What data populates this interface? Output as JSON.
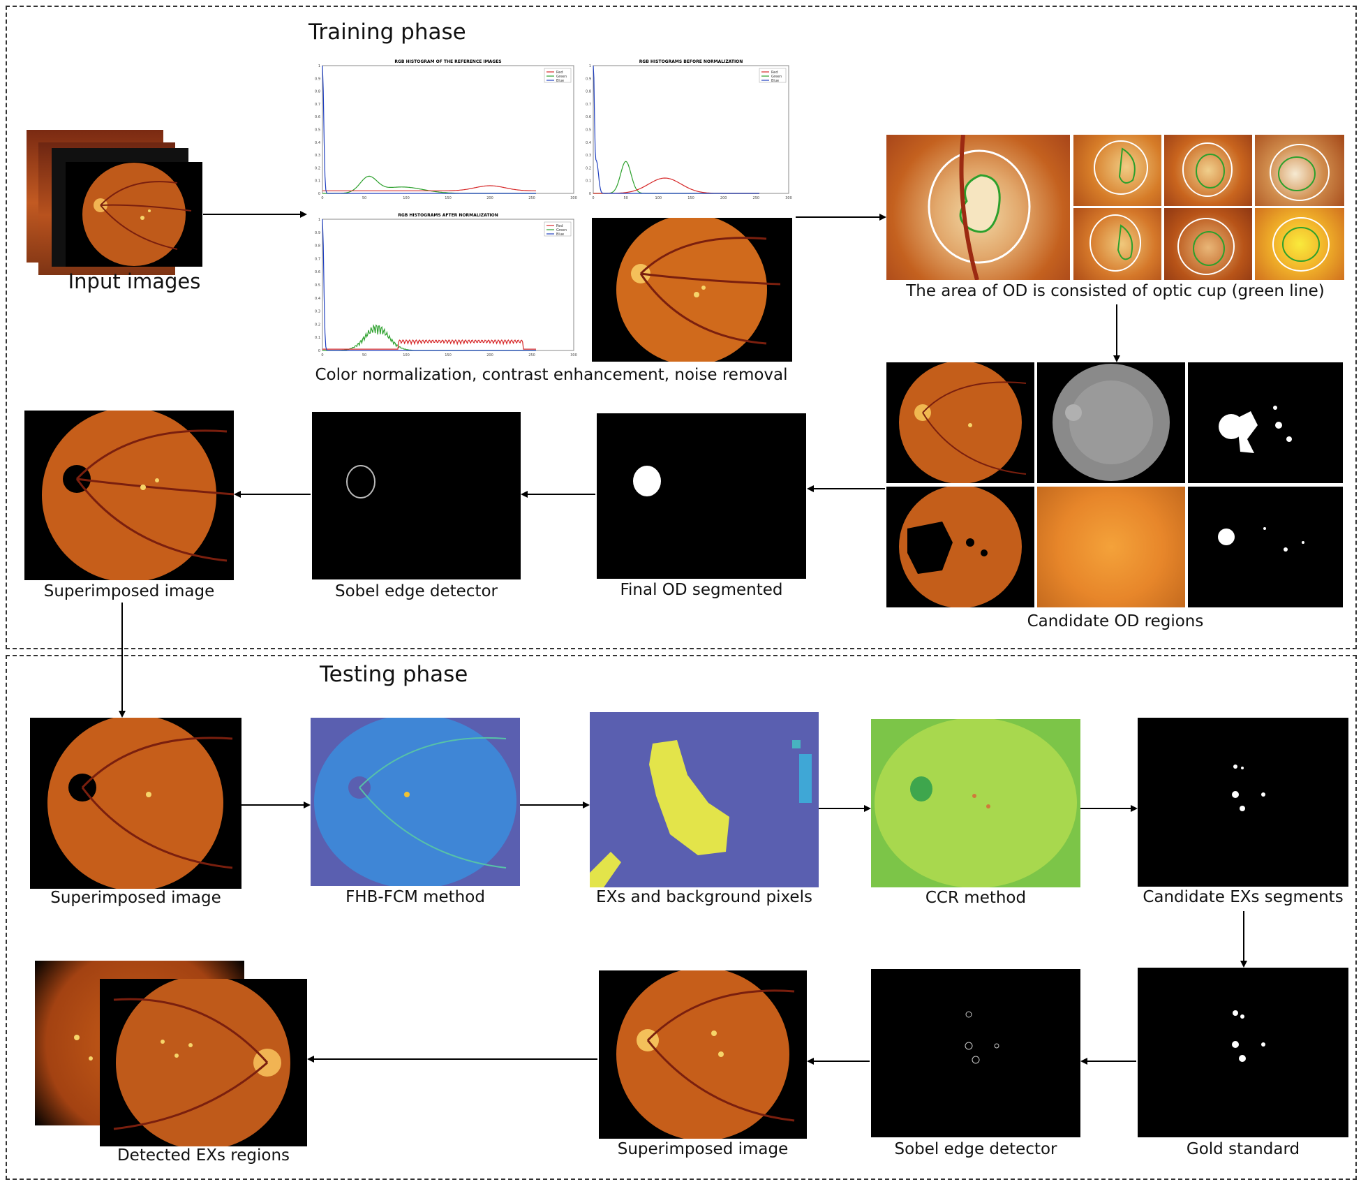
{
  "training": {
    "title": "Training phase",
    "input_caption": "Input images",
    "normalization_caption": "Color normalization, contrast enhancement, noise removal",
    "od_area_caption": "The area of OD is consisted of optic cup (green line)",
    "candidate_caption": "Candidate OD regions",
    "final_od_caption": "Final OD segmented",
    "sobel_caption": "Sobel edge detector",
    "superimposed_caption": "Superimposed image"
  },
  "testing": {
    "title": "Testing phase",
    "superimposed_caption": "Superimposed image",
    "fhb_caption": "FHB-FCM method",
    "exs_bg_caption": "EXs and background pixels",
    "ccr_caption": "CCR method",
    "candidate_exs_caption": "Candidate EXs segments",
    "gold_caption": "Gold standard",
    "sobel_caption": "Sobel edge detector",
    "superimposed2_caption": "Superimposed image",
    "detected_caption": "Detected EXs regions"
  },
  "charts": [
    {
      "id": "reference",
      "title": "RGB HISTOGRAM OF THE REFERENCE IMAGES",
      "legend": [
        "Red",
        "Green",
        "Blue"
      ],
      "xticks": [
        "0",
        "50",
        "100",
        "150",
        "200",
        "250",
        "300"
      ],
      "yticks": [
        "0",
        "0.1",
        "0.2",
        "0.3",
        "0.4",
        "0.5",
        "0.6",
        "0.7",
        "0.8",
        "0.9",
        "1"
      ]
    },
    {
      "id": "before",
      "title": "RGB HISTOGRAMS BEFORE NORMALIZATION",
      "legend": [
        "Red",
        "Green",
        "Blue"
      ],
      "xticks": [
        "0",
        "50",
        "100",
        "150",
        "200",
        "250",
        "300"
      ],
      "yticks": [
        "0",
        "0.1",
        "0.2",
        "0.3",
        "0.4",
        "0.5",
        "0.6",
        "0.7",
        "0.8",
        "0.9",
        "1"
      ]
    },
    {
      "id": "after",
      "title": "RGB HISTOGRAMS AFTER NORMALIZATION",
      "legend": [
        "Red",
        "Green",
        "Blue"
      ],
      "xticks": [
        "0",
        "50",
        "100",
        "150",
        "200",
        "250",
        "300"
      ],
      "yticks": [
        "0",
        "0.1",
        "0.2",
        "0.3",
        "0.4",
        "0.5",
        "0.6",
        "0.7",
        "0.8",
        "0.9",
        "1"
      ]
    }
  ],
  "colors": {
    "red": "#d62728",
    "green": "#2ca02c",
    "blue": "#1f3fbf",
    "fundus": "#c8661c"
  }
}
